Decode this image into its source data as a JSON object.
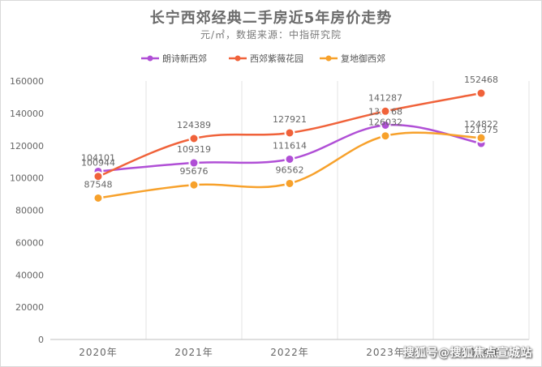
{
  "title": "长宁西郊经典二手房近5年房价走势",
  "subtitle": "元/㎡，数据来源：中指研究院",
  "watermark": "搜狐号@搜狐焦点宣城站",
  "chart_data": {
    "type": "line",
    "title": "长宁西郊经典二手房近5年房价走势",
    "subtitle": "元/㎡，数据来源：中指研究院",
    "categories": [
      "2020年",
      "2021年",
      "2022年",
      "2023年",
      "2024年"
    ],
    "ylim": [
      0,
      160000
    ],
    "yticks": [
      0,
      20000,
      40000,
      60000,
      80000,
      100000,
      120000,
      140000,
      160000
    ],
    "legend_position": "top",
    "grid": "vertical",
    "series": [
      {
        "name": "朗诗新西郊",
        "color": "#b04fd6",
        "values": [
          104101,
          109319,
          111614,
          132668,
          121375
        ]
      },
      {
        "name": "西郊紫薇花园",
        "color": "#f0623a",
        "values": [
          100944,
          124389,
          127921,
          141287,
          152468
        ]
      },
      {
        "name": "复地御西郊",
        "color": "#f7a12b",
        "values": [
          87548,
          95676,
          96562,
          126032,
          124822
        ]
      }
    ]
  }
}
